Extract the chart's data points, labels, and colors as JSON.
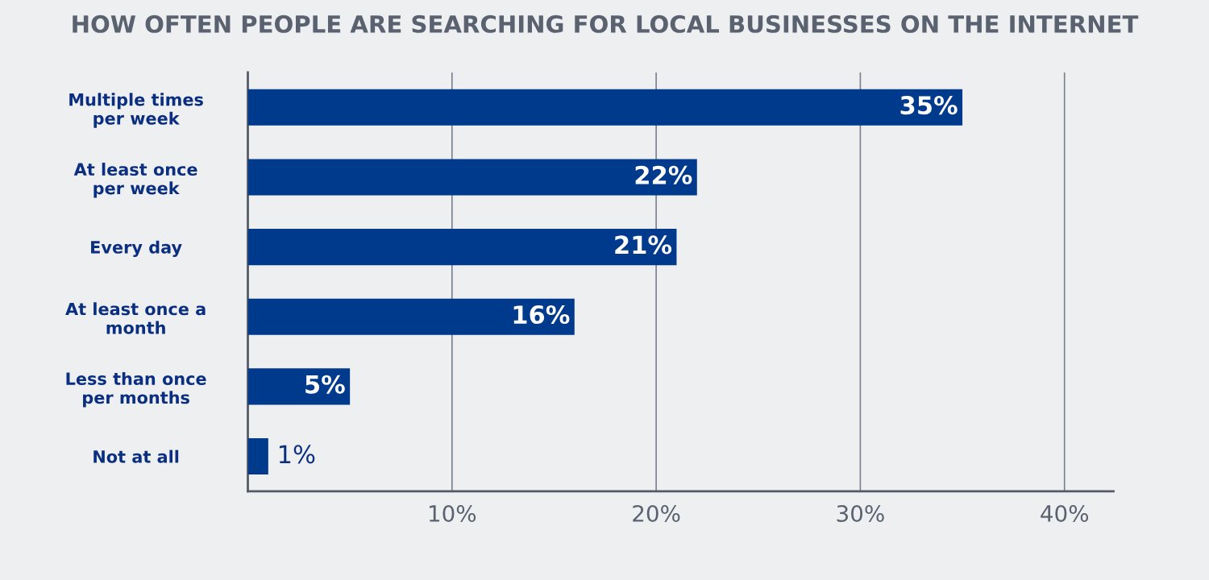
{
  "chart_data": {
    "type": "bar",
    "orientation": "horizontal",
    "title": "HOW OFTEN PEOPLE ARE SEARCHING FOR LOCAL BUSINESSES ON THE INTERNET",
    "categories": [
      "Multiple times\nper week",
      "At least once\nper week",
      "Every day",
      "At least once a\nmonth",
      "Less than once\nper months",
      "Not at all"
    ],
    "values": [
      35,
      22,
      21,
      16,
      5,
      1
    ],
    "color": "#003a8c",
    "value_labels": [
      "35%",
      "22%",
      "21%",
      "16%",
      "5%",
      "1%"
    ],
    "xlim": [
      0,
      42.4
    ],
    "xticks": [
      {
        "value": 10,
        "label": "10%"
      },
      {
        "value": 20,
        "label": "20%"
      },
      {
        "value": 30,
        "label": "30%"
      },
      {
        "value": 40,
        "label": "40%"
      }
    ],
    "grid": "x",
    "legend": false
  }
}
